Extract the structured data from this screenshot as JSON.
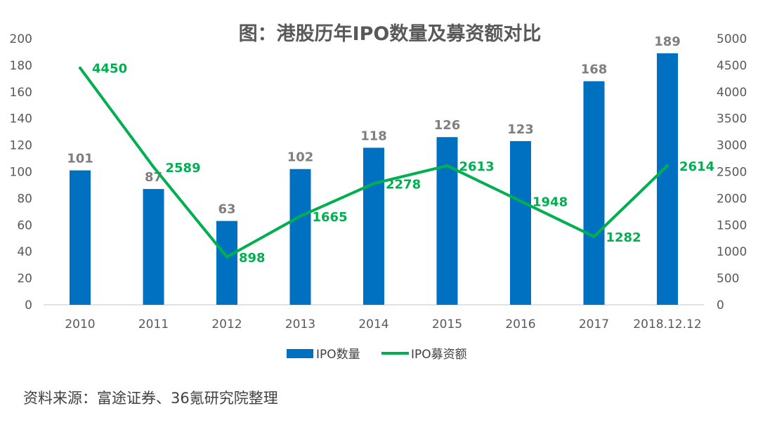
{
  "chart_data": {
    "type": "bar+line",
    "title": "图：港股历年IPO数量及募资额对比",
    "categories": [
      "2010",
      "2011",
      "2012",
      "2013",
      "2014",
      "2015",
      "2016",
      "2017",
      "2018.12.12"
    ],
    "series": [
      {
        "name": "IPO数量",
        "type": "bar",
        "axis": "left",
        "color": "#0070c0",
        "values": [
          101,
          87,
          63,
          102,
          118,
          126,
          123,
          168,
          189
        ]
      },
      {
        "name": "IPO募资额",
        "type": "line",
        "axis": "right",
        "color": "#00b050",
        "values": [
          4450,
          2589,
          898,
          1665,
          2278,
          2613,
          1948,
          1282,
          2614
        ]
      }
    ],
    "ylim_left": [
      0,
      200
    ],
    "yticks_left": [
      0,
      20,
      40,
      60,
      80,
      100,
      120,
      140,
      160,
      180,
      200
    ],
    "ylim_right": [
      0,
      5000
    ],
    "yticks_right": [
      0,
      500,
      1000,
      1500,
      2000,
      2500,
      3000,
      3500,
      4000,
      4500,
      5000
    ],
    "grid": false,
    "legend": "bottom"
  },
  "source": "资料来源：富途证券、36氪研究院整理"
}
